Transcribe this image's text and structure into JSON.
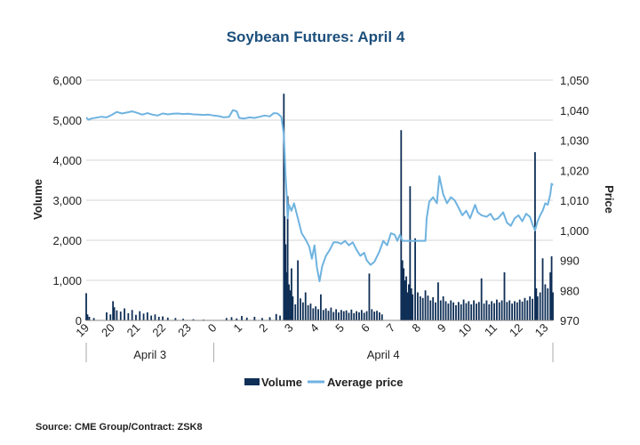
{
  "chart_data": {
    "type": "bar+line",
    "title": "Soybean Futures: April 4",
    "source": "Source: CME Group/Contract: ZSK8",
    "ylabel_left": "Volume",
    "ylabel_right": "Price",
    "y_left_lim": [
      0,
      6000
    ],
    "y_left_ticks": [
      "0",
      "1,000",
      "2,000",
      "3,000",
      "4,000",
      "5,000",
      "6,000"
    ],
    "y_right_lim": [
      970,
      1050
    ],
    "y_right_ticks": [
      "970",
      "980",
      "990",
      "1,000",
      "1,010",
      "1,020",
      "1,030",
      "1,040",
      "1,050"
    ],
    "x_tick_labels": [
      "19",
      "20",
      "21",
      "22",
      "23",
      "0",
      "1",
      "2",
      "3",
      "4",
      "5",
      "6",
      "7",
      "8",
      "9",
      "10",
      "11",
      "12",
      "13"
    ],
    "day_groups": [
      {
        "label": "April 3",
        "start_hour_index": 0,
        "end_hour_index": 5
      },
      {
        "label": "April 4",
        "start_hour_index": 5,
        "end_hour_index": 19
      }
    ],
    "grid": "horizontal",
    "legend_position": "bottom",
    "series": [
      {
        "name": "Volume",
        "type": "bar",
        "color": "#0f2f56",
        "points": [
          [
            0.0,
            680
          ],
          [
            0.05,
            150
          ],
          [
            0.12,
            90
          ],
          [
            0.3,
            60
          ],
          [
            0.8,
            200
          ],
          [
            0.95,
            150
          ],
          [
            1.05,
            480
          ],
          [
            1.1,
            330
          ],
          [
            1.2,
            250
          ],
          [
            1.35,
            220
          ],
          [
            1.5,
            300
          ],
          [
            1.65,
            180
          ],
          [
            1.8,
            260
          ],
          [
            1.95,
            140
          ],
          [
            2.1,
            230
          ],
          [
            2.25,
            170
          ],
          [
            2.4,
            200
          ],
          [
            2.55,
            120
          ],
          [
            2.7,
            150
          ],
          [
            2.85,
            90
          ],
          [
            3.0,
            100
          ],
          [
            3.2,
            70
          ],
          [
            3.5,
            60
          ],
          [
            3.8,
            40
          ],
          [
            4.2,
            30
          ],
          [
            4.6,
            20
          ],
          [
            5.5,
            60
          ],
          [
            5.7,
            80
          ],
          [
            5.9,
            50
          ],
          [
            6.1,
            110
          ],
          [
            6.3,
            70
          ],
          [
            6.6,
            90
          ],
          [
            6.9,
            60
          ],
          [
            7.2,
            80
          ],
          [
            7.45,
            160
          ],
          [
            7.6,
            120
          ],
          [
            7.75,
            5660
          ],
          [
            7.78,
            2600
          ],
          [
            7.82,
            1900
          ],
          [
            7.86,
            1200
          ],
          [
            7.9,
            3100
          ],
          [
            7.95,
            900
          ],
          [
            8.0,
            750
          ],
          [
            8.05,
            1300
          ],
          [
            8.1,
            600
          ],
          [
            8.2,
            400
          ],
          [
            8.3,
            1500
          ],
          [
            8.4,
            550
          ],
          [
            8.5,
            450
          ],
          [
            8.6,
            700
          ],
          [
            8.7,
            380
          ],
          [
            8.8,
            420
          ],
          [
            8.9,
            300
          ],
          [
            9.0,
            350
          ],
          [
            9.1,
            280
          ],
          [
            9.2,
            650
          ],
          [
            9.3,
            260
          ],
          [
            9.4,
            300
          ],
          [
            9.5,
            240
          ],
          [
            9.6,
            320
          ],
          [
            9.7,
            210
          ],
          [
            9.8,
            280
          ],
          [
            9.9,
            200
          ],
          [
            10.0,
            260
          ],
          [
            10.1,
            230
          ],
          [
            10.2,
            250
          ],
          [
            10.3,
            190
          ],
          [
            10.4,
            270
          ],
          [
            10.5,
            180
          ],
          [
            10.6,
            230
          ],
          [
            10.7,
            200
          ],
          [
            10.8,
            260
          ],
          [
            10.9,
            190
          ],
          [
            11.0,
            230
          ],
          [
            11.1,
            1170
          ],
          [
            11.2,
            280
          ],
          [
            11.3,
            220
          ],
          [
            11.4,
            240
          ],
          [
            11.5,
            200
          ],
          [
            11.6,
            150
          ],
          [
            12.35,
            4750
          ],
          [
            12.4,
            1500
          ],
          [
            12.45,
            1300
          ],
          [
            12.5,
            1000
          ],
          [
            12.55,
            1100
          ],
          [
            12.6,
            700
          ],
          [
            12.65,
            900
          ],
          [
            12.7,
            3350
          ],
          [
            12.75,
            800
          ],
          [
            12.8,
            650
          ],
          [
            12.9,
            2050
          ],
          [
            13.0,
            700
          ],
          [
            13.1,
            600
          ],
          [
            13.2,
            560
          ],
          [
            13.3,
            750
          ],
          [
            13.4,
            620
          ],
          [
            13.5,
            500
          ],
          [
            13.6,
            580
          ],
          [
            13.7,
            450
          ],
          [
            13.8,
            950
          ],
          [
            13.9,
            500
          ],
          [
            14.0,
            600
          ],
          [
            14.1,
            480
          ],
          [
            14.2,
            420
          ],
          [
            14.3,
            500
          ],
          [
            14.4,
            450
          ],
          [
            14.5,
            380
          ],
          [
            14.6,
            460
          ],
          [
            14.7,
            400
          ],
          [
            14.8,
            520
          ],
          [
            14.9,
            430
          ],
          [
            15.0,
            480
          ],
          [
            15.1,
            400
          ],
          [
            15.2,
            500
          ],
          [
            15.3,
            420
          ],
          [
            15.4,
            460
          ],
          [
            15.5,
            1050
          ],
          [
            15.6,
            420
          ],
          [
            15.7,
            500
          ],
          [
            15.8,
            400
          ],
          [
            15.9,
            480
          ],
          [
            16.0,
            430
          ],
          [
            16.1,
            520
          ],
          [
            16.2,
            450
          ],
          [
            16.3,
            500
          ],
          [
            16.4,
            1200
          ],
          [
            16.5,
            460
          ],
          [
            16.6,
            500
          ],
          [
            16.7,
            420
          ],
          [
            16.8,
            480
          ],
          [
            16.9,
            450
          ],
          [
            17.0,
            520
          ],
          [
            17.1,
            470
          ],
          [
            17.2,
            560
          ],
          [
            17.3,
            500
          ],
          [
            17.4,
            600
          ],
          [
            17.5,
            540
          ],
          [
            17.6,
            4200
          ],
          [
            17.65,
            800
          ],
          [
            17.7,
            600
          ],
          [
            17.8,
            700
          ],
          [
            17.9,
            1550
          ],
          [
            18.0,
            900
          ],
          [
            18.1,
            800
          ],
          [
            18.2,
            1200
          ],
          [
            18.25,
            1600
          ],
          [
            18.3,
            700
          ]
        ]
      },
      {
        "name": "Average price",
        "type": "line",
        "color": "#6fb3e0",
        "points": [
          [
            0.0,
            1037.5
          ],
          [
            0.1,
            1036.8
          ],
          [
            0.2,
            1037.2
          ],
          [
            0.4,
            1037.5
          ],
          [
            0.6,
            1037.8
          ],
          [
            0.8,
            1037.6
          ],
          [
            1.0,
            1038.4
          ],
          [
            1.2,
            1039.4
          ],
          [
            1.4,
            1038.9
          ],
          [
            1.6,
            1039.2
          ],
          [
            1.8,
            1039.6
          ],
          [
            2.0,
            1039.1
          ],
          [
            2.2,
            1038.5
          ],
          [
            2.4,
            1039.0
          ],
          [
            2.6,
            1038.5
          ],
          [
            2.8,
            1038.2
          ],
          [
            3.0,
            1038.9
          ],
          [
            3.2,
            1038.6
          ],
          [
            3.4,
            1038.8
          ],
          [
            3.6,
            1038.9
          ],
          [
            3.8,
            1038.7
          ],
          [
            4.0,
            1038.8
          ],
          [
            4.2,
            1038.6
          ],
          [
            4.4,
            1038.5
          ],
          [
            4.6,
            1038.4
          ],
          [
            4.8,
            1038.5
          ],
          [
            5.0,
            1038.2
          ],
          [
            5.2,
            1038.0
          ],
          [
            5.4,
            1037.6
          ],
          [
            5.6,
            1037.8
          ],
          [
            5.75,
            1040.0
          ],
          [
            5.9,
            1039.6
          ],
          [
            6.0,
            1037.4
          ],
          [
            6.2,
            1037.2
          ],
          [
            6.4,
            1037.6
          ],
          [
            6.6,
            1037.4
          ],
          [
            6.8,
            1037.8
          ],
          [
            7.0,
            1038.2
          ],
          [
            7.2,
            1037.9
          ],
          [
            7.35,
            1039.0
          ],
          [
            7.5,
            1038.9
          ],
          [
            7.65,
            1037.8
          ],
          [
            7.75,
            1032.0
          ],
          [
            7.78,
            1026.0
          ],
          [
            7.82,
            1018.0
          ],
          [
            7.86,
            1012.0
          ],
          [
            7.9,
            1004.0
          ],
          [
            7.95,
            1008.5
          ],
          [
            8.05,
            1006.5
          ],
          [
            8.15,
            1009.0
          ],
          [
            8.3,
            1004.0
          ],
          [
            8.45,
            999.0
          ],
          [
            8.6,
            997.0
          ],
          [
            8.75,
            994.5
          ],
          [
            8.85,
            990.5
          ],
          [
            8.95,
            995.0
          ],
          [
            9.05,
            987.5
          ],
          [
            9.15,
            983.0
          ],
          [
            9.25,
            988.0
          ],
          [
            9.4,
            991.5
          ],
          [
            9.55,
            993.5
          ],
          [
            9.7,
            996.0
          ],
          [
            9.85,
            996.0
          ],
          [
            10.0,
            995.5
          ],
          [
            10.15,
            996.5
          ],
          [
            10.3,
            995.0
          ],
          [
            10.45,
            996.0
          ],
          [
            10.6,
            993.5
          ],
          [
            10.75,
            991.5
          ],
          [
            10.9,
            992.5
          ],
          [
            11.0,
            990.0
          ],
          [
            11.15,
            988.5
          ],
          [
            11.3,
            989.5
          ],
          [
            11.5,
            993.0
          ],
          [
            11.65,
            996.5
          ],
          [
            11.8,
            995.0
          ],
          [
            11.95,
            999.0
          ],
          [
            12.1,
            998.5
          ],
          [
            12.2,
            996.5
          ],
          [
            12.3,
            998.5
          ],
          [
            12.4,
            996.5
          ],
          [
            13.3,
            996.5
          ],
          [
            13.35,
            1004.0
          ],
          [
            13.45,
            1009.5
          ],
          [
            13.6,
            1011.0
          ],
          [
            13.75,
            1009.0
          ],
          [
            13.85,
            1018.0
          ],
          [
            14.0,
            1012.0
          ],
          [
            14.15,
            1009.0
          ],
          [
            14.3,
            1011.0
          ],
          [
            14.45,
            1010.0
          ],
          [
            14.6,
            1007.5
          ],
          [
            14.75,
            1005.0
          ],
          [
            14.9,
            1006.5
          ],
          [
            15.05,
            1004.0
          ],
          [
            15.25,
            1008.5
          ],
          [
            15.35,
            1006.0
          ],
          [
            15.5,
            1005.0
          ],
          [
            15.7,
            1004.5
          ],
          [
            15.85,
            1005.5
          ],
          [
            16.0,
            1003.5
          ],
          [
            16.15,
            1004.0
          ],
          [
            16.35,
            1006.0
          ],
          [
            16.5,
            1002.5
          ],
          [
            16.65,
            1001.5
          ],
          [
            16.8,
            1004.0
          ],
          [
            16.95,
            1005.0
          ],
          [
            17.1,
            1003.0
          ],
          [
            17.25,
            1005.5
          ],
          [
            17.4,
            1004.5
          ],
          [
            17.5,
            1002.0
          ],
          [
            17.6,
            1000.0
          ],
          [
            17.7,
            1003.0
          ],
          [
            17.8,
            1005.0
          ],
          [
            17.9,
            1006.5
          ],
          [
            18.0,
            1009.0
          ],
          [
            18.1,
            1008.5
          ],
          [
            18.2,
            1012.0
          ],
          [
            18.25,
            1015.5
          ],
          [
            18.3,
            1015.0
          ]
        ]
      }
    ]
  }
}
